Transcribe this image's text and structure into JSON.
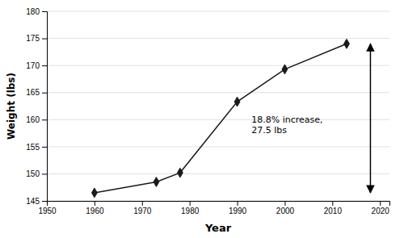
{
  "chart_data": {
    "type": "line",
    "x": [
      1960,
      1973,
      1978,
      1990,
      2000,
      2013
    ],
    "values": [
      146.5,
      148.5,
      150.2,
      163.3,
      169.3,
      174.0
    ],
    "color": "#1a1a1a",
    "marker": "diamond",
    "xlim": [
      1950,
      2022
    ],
    "ylim": [
      145,
      180
    ],
    "xticks": [
      1950,
      1960,
      1970,
      1980,
      1990,
      2000,
      2010,
      2020
    ],
    "yticks": [
      145,
      150,
      155,
      160,
      165,
      170,
      175,
      180
    ],
    "xlabel": "Year",
    "ylabel": "Weight (lbs)",
    "grid": true,
    "annotations": [
      {
        "text": "18.8% increase,\n27.5 lbs",
        "x": 1993,
        "y": 159
      }
    ],
    "arrow": {
      "x": 2018,
      "y_start": 174.0,
      "y_end": 146.5
    }
  }
}
